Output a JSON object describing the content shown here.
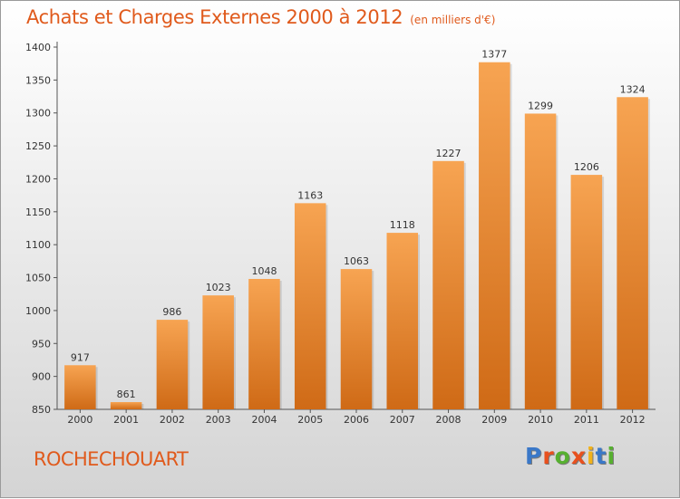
{
  "title": "Achats et Charges Externes 2000 à 2012",
  "subtitle": "(en milliers d'€)",
  "location": "ROCHECHOUART",
  "logo": {
    "text": "Proxiti",
    "letter_colors": [
      "#3a78c8",
      "#e8501e",
      "#57b030",
      "#e8501e",
      "#f2b21a",
      "#3a78c8",
      "#57b030"
    ]
  },
  "colors": {
    "bar_light": "#f7a452",
    "bar_dark": "#cf6a16",
    "accent": "#e05a1c"
  },
  "chart_data": {
    "type": "bar",
    "title": "Achats et Charges Externes 2000 à 2012",
    "subtitle": "(en milliers d'€)",
    "categories": [
      "2000",
      "2001",
      "2002",
      "2003",
      "2004",
      "2005",
      "2006",
      "2007",
      "2008",
      "2009",
      "2010",
      "2011",
      "2012"
    ],
    "values": [
      917,
      861,
      986,
      1023,
      1048,
      1163,
      1063,
      1118,
      1227,
      1377,
      1299,
      1206,
      1324
    ],
    "ylim": [
      850,
      1400
    ],
    "yticks": [
      850,
      900,
      950,
      1000,
      1050,
      1100,
      1150,
      1200,
      1250,
      1300,
      1350,
      1400
    ],
    "grid": false,
    "legend": "none"
  }
}
